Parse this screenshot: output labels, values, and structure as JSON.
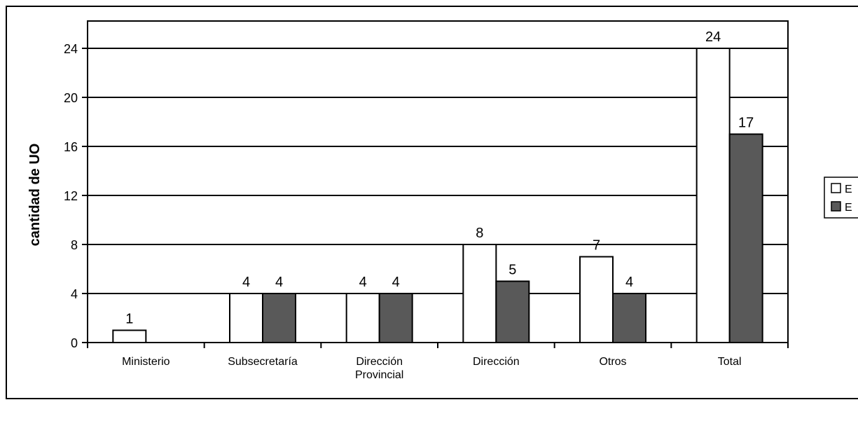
{
  "chart_data": {
    "type": "bar",
    "title": "",
    "xlabel": "",
    "ylabel": "cantidad de UO",
    "ylim": [
      0,
      24
    ],
    "yticks": [
      0,
      4,
      8,
      12,
      16,
      20,
      24
    ],
    "grid": true,
    "legend_position": "right",
    "categories": [
      [
        "Ministerio"
      ],
      [
        "Subsecretaría"
      ],
      [
        "Dirección",
        "Provincial"
      ],
      [
        "Dirección"
      ],
      [
        "Otros"
      ],
      [
        "Total"
      ]
    ],
    "series": [
      {
        "name": "E",
        "color": "#ffffff",
        "values": [
          1,
          4,
          4,
          8,
          7,
          24
        ]
      },
      {
        "name": "E",
        "color": "#595959",
        "values": [
          null,
          4,
          4,
          5,
          4,
          17
        ]
      }
    ]
  }
}
